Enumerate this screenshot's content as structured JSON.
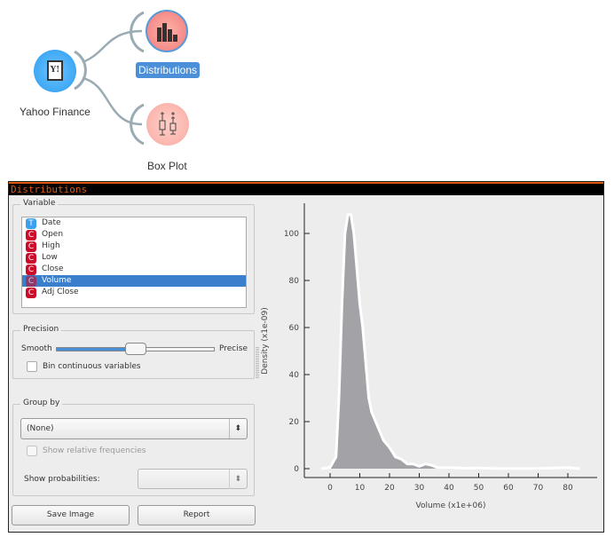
{
  "canvas": {
    "nodes": [
      {
        "label": "Yahoo Finance",
        "icon": "yahoo-finance-icon",
        "color": "#3aa6f0"
      },
      {
        "label": "Distributions",
        "icon": "bar-chart-icon",
        "color": "#f58c8c",
        "selected": true
      },
      {
        "label": "Box Plot",
        "icon": "box-plot-icon",
        "color": "#f8b8b0"
      }
    ]
  },
  "window": {
    "title": "Distributions",
    "variable": {
      "legend": "Variable",
      "items": [
        {
          "type": "T",
          "label": "Date",
          "color": "#3aa0f0"
        },
        {
          "type": "C",
          "label": "Open",
          "color": "#cc0a2a"
        },
        {
          "type": "C",
          "label": "High",
          "color": "#cc0a2a"
        },
        {
          "type": "C",
          "label": "Low",
          "color": "#cc0a2a"
        },
        {
          "type": "C",
          "label": "Close",
          "color": "#cc0a2a"
        },
        {
          "type": "C",
          "label": "Volume",
          "color": "#cc0a2a",
          "selected": true
        },
        {
          "type": "C",
          "label": "Adj Close",
          "color": "#cc0a2a"
        }
      ]
    },
    "precision": {
      "legend": "Precision",
      "left_label": "Smooth",
      "right_label": "Precise",
      "slider_value": 0.5,
      "bin_label": "Bin continuous variables",
      "bin_checked": false
    },
    "group_by": {
      "legend": "Group by",
      "value": "(None)",
      "rel_freq_label": "Show relative frequencies",
      "show_prob_label": "Show probabilities:",
      "show_prob_value": ""
    },
    "buttons": {
      "save": "Save Image",
      "report": "Report"
    }
  },
  "chart_data": {
    "type": "area",
    "xlabel": "Volume (x1e+06)",
    "ylabel": "Density (x1e-09)",
    "xticks": [
      0,
      10,
      20,
      30,
      40,
      50,
      60,
      70,
      80
    ],
    "yticks": [
      0,
      20,
      40,
      60,
      80,
      100
    ],
    "xlim": [
      -7,
      90
    ],
    "ylim": [
      -4,
      112
    ],
    "fill_color": "#a3a2a6",
    "line_color": "#ffffff",
    "x": [
      -3,
      0,
      2,
      3,
      4,
      5,
      6,
      7,
      8,
      9,
      10,
      11,
      12,
      13,
      14,
      16,
      18,
      20,
      22,
      24,
      26,
      28,
      30,
      32,
      34,
      36,
      40,
      45,
      50,
      55,
      60,
      70,
      80,
      84
    ],
    "y": [
      0,
      0.5,
      5,
      30,
      70,
      100,
      108,
      108,
      100,
      85,
      70,
      60,
      45,
      30,
      24,
      18,
      12,
      9,
      5,
      4,
      2,
      2,
      1,
      2,
      1.5,
      0.5,
      0.5,
      0.2,
      0.3,
      0.1,
      0.1,
      0.1,
      0.5,
      0
    ]
  }
}
